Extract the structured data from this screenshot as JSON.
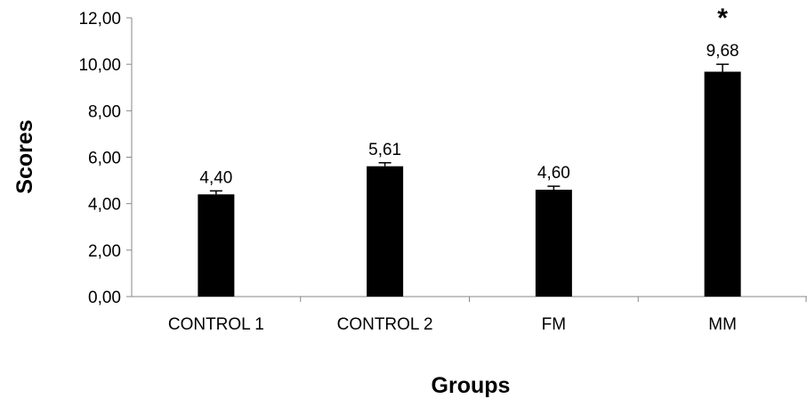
{
  "chart_data": {
    "type": "bar",
    "categories": [
      "CONTROL 1",
      "CONTROL 2",
      "FM",
      "MM"
    ],
    "values": [
      4.4,
      5.61,
      4.6,
      9.68
    ],
    "data_labels": [
      "4,40",
      "5,61",
      "4,60",
      "9,68"
    ],
    "error_bars": [
      0.15,
      0.15,
      0.15,
      0.32
    ],
    "xlabel": "Groups",
    "ylabel": "Scores",
    "ylim": [
      0,
      12
    ],
    "yticks": [
      0,
      2,
      4,
      6,
      8,
      10,
      12
    ],
    "ytick_labels": [
      "0,00",
      "2,00",
      "4,00",
      "6,00",
      "8,00",
      "10,00",
      "12,00"
    ],
    "annotations": [
      {
        "category": "MM",
        "text": "*"
      }
    ],
    "grid": false,
    "legend": "none",
    "bar_color": "#000000"
  }
}
